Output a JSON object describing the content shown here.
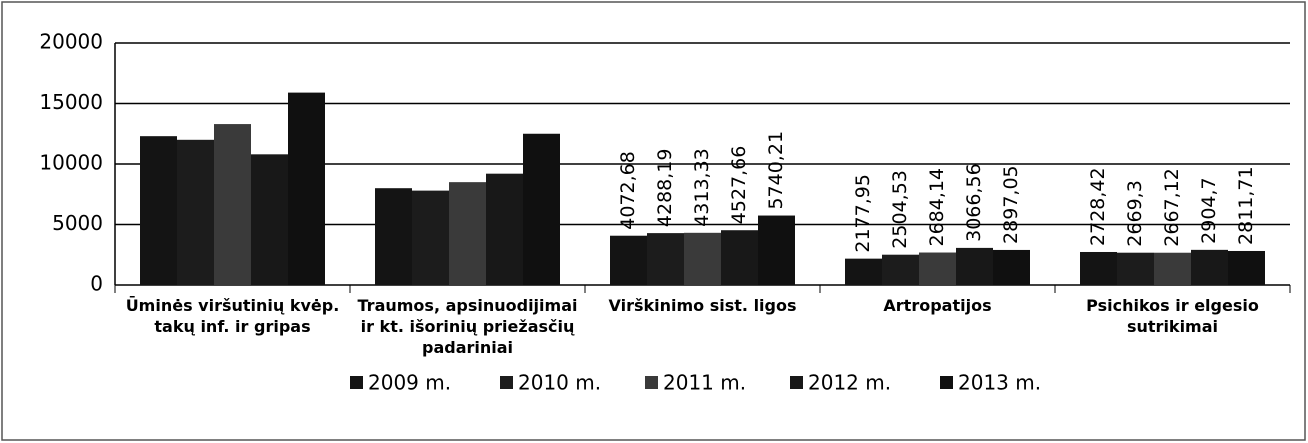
{
  "chart_data": {
    "type": "bar",
    "categories": [
      "Ūminės viršutinių kvėp. takų inf. ir gripas",
      "Traumos, apsinuodijimai ir kt. išorinių priežasčių padariniai",
      "Virškinimo sist. ligos",
      "Artropatijos",
      "Psichikos ir elgesio sutrikimai"
    ],
    "series": [
      {
        "name": "2009 m.",
        "color": "#141414",
        "values": [
          12300,
          8000,
          4072.68,
          2177.95,
          2728.42
        ],
        "value_labels": [
          null,
          null,
          "4072,68",
          "2177,95",
          "2728,42"
        ]
      },
      {
        "name": "2010 m.",
        "color": "#1c1c1c",
        "values": [
          12000,
          7800,
          4288.19,
          2504.53,
          2669.3
        ],
        "value_labels": [
          null,
          null,
          "4288,19",
          "2504,53",
          "2669,3"
        ]
      },
      {
        "name": "2011 m.",
        "color": "#3a3a3a",
        "values": [
          13300,
          8500,
          4313.33,
          2684.14,
          2667.12
        ],
        "value_labels": [
          null,
          null,
          "4313,33",
          "2684,14",
          "2667,12"
        ]
      },
      {
        "name": "2012 m.",
        "color": "#181818",
        "values": [
          10800,
          9200,
          4527.66,
          3066.56,
          2904.7
        ],
        "value_labels": [
          null,
          null,
          "4527,66",
          "3066,56",
          "2904,7"
        ]
      },
      {
        "name": "2013 m.",
        "color": "#101010",
        "values": [
          15900,
          12500,
          5740.21,
          2897.05,
          2811.71
        ],
        "value_labels": [
          null,
          null,
          "5740,21",
          "2897,05",
          "2811,71"
        ]
      }
    ],
    "ylim": [
      0,
      20000
    ],
    "yticks": [
      0,
      5000,
      10000,
      15000,
      20000
    ],
    "grid": true,
    "legend": "bottom"
  }
}
